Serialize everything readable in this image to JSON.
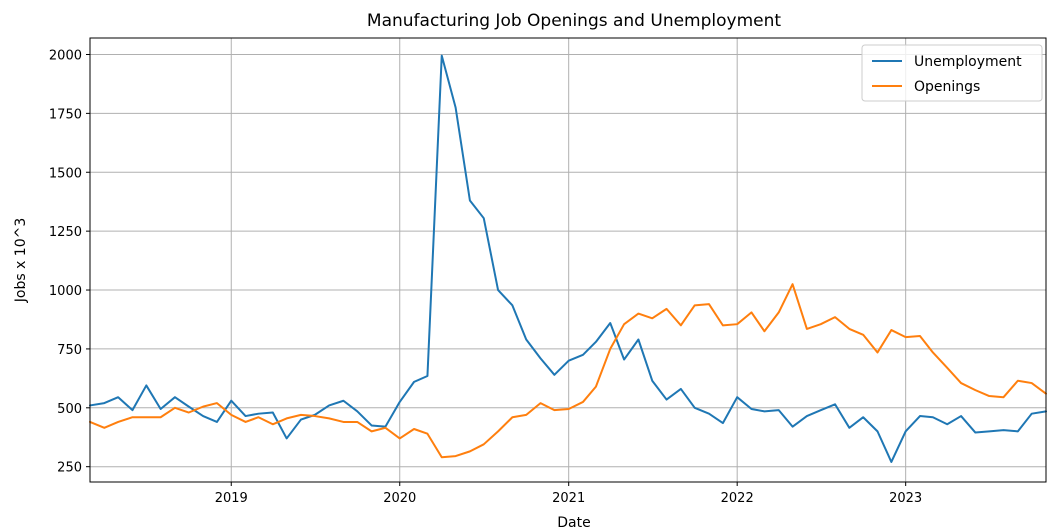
{
  "chart_data": {
    "type": "line",
    "title": "Manufacturing Job Openings and Unemployment",
    "xlabel": "Date",
    "ylabel": "Jobs x 10^3",
    "xlim": [
      "2018-03-01",
      "2023-11-01"
    ],
    "ylim": [
      185,
      2070
    ],
    "y_ticks": [
      250,
      500,
      750,
      1000,
      1250,
      1500,
      1750,
      2000
    ],
    "x_ticks": [
      {
        "label": "2019",
        "date": "2019-01-01"
      },
      {
        "label": "2020",
        "date": "2020-01-01"
      },
      {
        "label": "2021",
        "date": "2021-01-01"
      },
      {
        "label": "2022",
        "date": "2022-01-01"
      },
      {
        "label": "2023",
        "date": "2023-01-01"
      }
    ],
    "grid": true,
    "legend_position": "top-right",
    "x": [
      "2018-03-01",
      "2018-04-01",
      "2018-05-01",
      "2018-06-01",
      "2018-07-01",
      "2018-08-01",
      "2018-09-01",
      "2018-10-01",
      "2018-11-01",
      "2018-12-01",
      "2019-01-01",
      "2019-02-01",
      "2019-03-01",
      "2019-04-01",
      "2019-05-01",
      "2019-06-01",
      "2019-07-01",
      "2019-08-01",
      "2019-09-01",
      "2019-10-01",
      "2019-11-01",
      "2019-12-01",
      "2020-01-01",
      "2020-02-01",
      "2020-03-01",
      "2020-04-01",
      "2020-05-01",
      "2020-06-01",
      "2020-07-01",
      "2020-08-01",
      "2020-09-01",
      "2020-10-01",
      "2020-11-01",
      "2020-12-01",
      "2021-01-01",
      "2021-02-01",
      "2021-03-01",
      "2021-04-01",
      "2021-05-01",
      "2021-06-01",
      "2021-07-01",
      "2021-08-01",
      "2021-09-01",
      "2021-10-01",
      "2021-11-01",
      "2021-12-01",
      "2022-01-01",
      "2022-02-01",
      "2022-03-01",
      "2022-04-01",
      "2022-05-01",
      "2022-06-01",
      "2022-07-01",
      "2022-08-01",
      "2022-09-01",
      "2022-10-01",
      "2022-11-01",
      "2022-12-01",
      "2023-01-01",
      "2023-02-01",
      "2023-03-01",
      "2023-04-01",
      "2023-05-01",
      "2023-06-01",
      "2023-07-01",
      "2023-08-01",
      "2023-09-01",
      "2023-10-01",
      "2023-11-01"
    ],
    "series": [
      {
        "name": "Unemployment",
        "color": "#1f77b4",
        "values": [
          510,
          520,
          545,
          490,
          595,
          495,
          545,
          505,
          465,
          440,
          530,
          465,
          475,
          480,
          370,
          450,
          470,
          510,
          530,
          485,
          425,
          420,
          525,
          610,
          635,
          1995,
          1775,
          1380,
          1305,
          1000,
          935,
          790,
          710,
          640,
          700,
          725,
          780,
          860,
          705,
          790,
          615,
          535,
          580,
          500,
          475,
          435,
          545,
          495,
          485,
          490,
          420,
          465,
          490,
          515,
          415,
          460,
          400,
          270,
          400,
          465,
          460,
          430,
          465,
          395,
          400,
          405,
          400,
          475,
          485
        ]
      },
      {
        "name": "Openings",
        "color": "#ff7f0e",
        "values": [
          440,
          415,
          440,
          460,
          460,
          460,
          500,
          480,
          505,
          520,
          470,
          440,
          460,
          430,
          455,
          470,
          465,
          455,
          440,
          440,
          400,
          415,
          370,
          410,
          390,
          290,
          295,
          315,
          345,
          400,
          460,
          470,
          520,
          490,
          495,
          525,
          590,
          750,
          855,
          900,
          880,
          920,
          850,
          935,
          940,
          850,
          855,
          905,
          825,
          905,
          1025,
          835,
          855,
          885,
          835,
          810,
          735,
          830,
          800,
          805,
          735,
          670,
          605,
          575,
          550,
          545,
          615,
          605,
          560
        ]
      }
    ]
  }
}
